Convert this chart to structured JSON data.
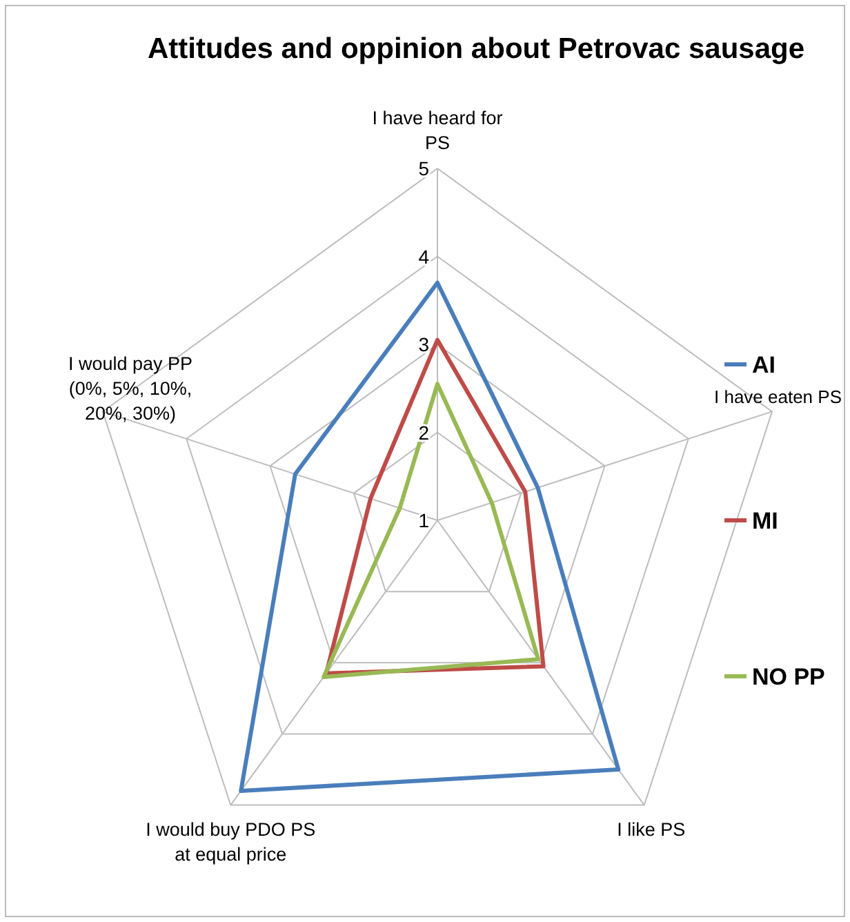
{
  "chart_data": {
    "type": "radar",
    "title": "Attitudes and oppinion about Petrovac sausage",
    "categories": [
      "I have heard for PS",
      "I have eaten PS",
      "I like PS",
      "I would buy PDO PS at equal price",
      "I would pay PP (0%, 5%, 10%, 20%, 30%)"
    ],
    "ylim": [
      1,
      5
    ],
    "yticks": [
      1,
      2,
      3,
      4,
      5
    ],
    "grid": true,
    "legend": "right",
    "series": [
      {
        "name": "AI",
        "color": "#4a7ebb",
        "values": [
          3.7,
          2.2,
          4.5,
          4.8,
          2.7
        ]
      },
      {
        "name": "MI",
        "color": "#be4b48",
        "values": [
          3.05,
          2.05,
          3.05,
          3.15,
          1.8
        ]
      },
      {
        "name": "NO PP",
        "color": "#98b954",
        "values": [
          2.55,
          1.65,
          2.95,
          3.2,
          1.45
        ]
      }
    ]
  }
}
